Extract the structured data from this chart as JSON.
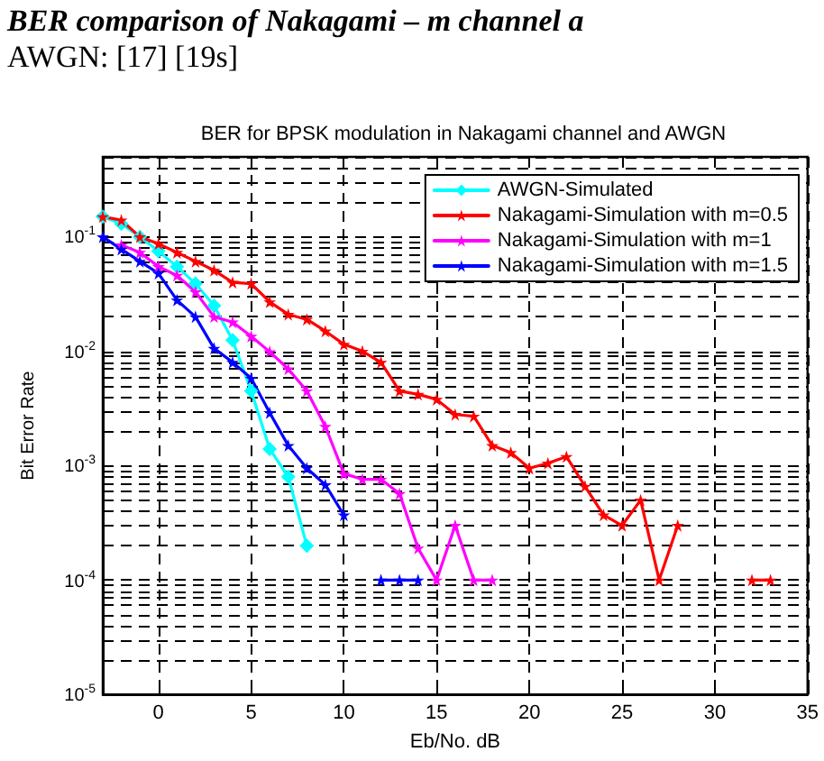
{
  "chart_data": {
    "type": "line",
    "title": "BER for BPSK modulation in Nakagami channel and AWGN",
    "xlabel": "Eb/No. dB",
    "ylabel": "Bit Error Rate",
    "annotations": [
      "BER comparison of Nakagami – m channel a",
      "AWGN: [17] [19s]"
    ],
    "log": "y",
    "grid": true,
    "legend": "top right",
    "line_style": "solid",
    "xlim": [
      -3,
      35
    ],
    "xticks": [
      0,
      5,
      10,
      15,
      20,
      25,
      30,
      35
    ],
    "ylim": [
      1e-05,
      0.5
    ],
    "yticks": [
      {
        "value": 1e-05,
        "label": "10$^{-5}$"
      },
      {
        "value": 2e-05,
        "label": null
      },
      {
        "value": 3e-05,
        "label": null
      },
      {
        "value": 4e-05,
        "label": null
      },
      {
        "value": 5e-05,
        "label": null
      },
      {
        "value": 6e-05,
        "label": null
      },
      {
        "value": 7e-05,
        "label": null
      },
      {
        "value": 8e-05,
        "label": null
      },
      {
        "value": 9e-05,
        "label": null
      },
      {
        "value": 0.0001,
        "label": "10$^{-4}$"
      },
      {
        "value": 0.0002,
        "label": null
      },
      {
        "value": 0.0003,
        "label": null
      },
      {
        "value": 0.0004,
        "label": null
      },
      {
        "value": 0.0005,
        "label": null
      },
      {
        "value": 0.0006,
        "label": null
      },
      {
        "value": 0.0007,
        "label": null
      },
      {
        "value": 0.0008,
        "label": null
      },
      {
        "value": 0.0009,
        "label": null
      },
      {
        "value": 0.001,
        "label": "10$^{-3}$"
      },
      {
        "value": 0.002,
        "label": null
      },
      {
        "value": 0.003,
        "label": null
      },
      {
        "value": 0.004,
        "label": null
      },
      {
        "value": 0.005,
        "label": null
      },
      {
        "value": 0.006,
        "label": null
      },
      {
        "value": 0.007,
        "label": null
      },
      {
        "value": 0.008,
        "label": null
      },
      {
        "value": 0.009,
        "label": null
      },
      {
        "value": 0.01,
        "label": "10$^{-2}$"
      },
      {
        "value": 0.02,
        "label": null
      },
      {
        "value": 0.03,
        "label": null
      },
      {
        "value": 0.04,
        "label": null
      },
      {
        "value": 0.05,
        "label": null
      },
      {
        "value": 0.06,
        "label": null
      },
      {
        "value": 0.07,
        "label": null
      },
      {
        "value": 0.08,
        "label": null
      },
      {
        "value": 0.09,
        "label": null
      },
      {
        "value": 0.1,
        "label": "10$^{-1}$"
      },
      {
        "value": 0.2,
        "label": null
      },
      {
        "value": 0.3,
        "label": null
      },
      {
        "value": 0.4,
        "label": null
      },
      {
        "value": 0.5,
        "label": null
      }
    ],
    "series": [
      {
        "name": "AWGN-Simulated",
        "color": "#00ffff",
        "marker": "diamond",
        "x": [
          -3,
          -2,
          -1,
          0,
          1,
          2,
          3,
          4,
          5,
          6,
          7,
          8
        ],
        "values": [
          0.15,
          0.13,
          0.1,
          0.075,
          0.055,
          0.039,
          0.025,
          0.0125,
          0.0045,
          0.0014,
          0.0008,
          0.0002
        ]
      },
      {
        "name": "Nakagami-Simulation with m=0.5",
        "color": "#ff0000",
        "marker": "star",
        "x": [
          -3,
          -2,
          -1,
          0,
          1,
          2,
          3,
          4,
          5,
          6,
          7,
          8,
          9,
          10,
          11,
          12,
          13,
          14,
          15,
          16,
          17,
          18,
          19,
          20,
          21,
          22,
          23,
          24,
          25,
          26,
          27,
          28,
          29,
          30,
          31,
          32,
          33
        ],
        "values": [
          0.15,
          0.14,
          0.1,
          0.087,
          0.073,
          0.061,
          0.051,
          0.04,
          0.039,
          0.027,
          0.021,
          0.019,
          0.015,
          0.0115,
          0.01,
          0.008,
          0.0045,
          0.0042,
          0.0038,
          0.0028,
          0.0027,
          0.0015,
          0.0013,
          0.00095,
          0.00105,
          0.0012,
          0.00066,
          0.00037,
          0.0003,
          0.0005,
          0.0001,
          0.0003,
          null,
          null,
          null,
          0.0001,
          0.0001
        ]
      },
      {
        "name": "Nakagami-Simulation with m=1",
        "color": "#ff00ff",
        "marker": "star",
        "x": [
          -2,
          -1,
          0,
          1,
          2,
          3,
          4,
          5,
          6,
          7,
          8,
          9,
          10,
          11,
          12,
          13,
          14,
          15,
          16,
          17,
          18
        ],
        "values": [
          0.085,
          0.073,
          0.055,
          0.046,
          0.033,
          0.02,
          0.018,
          0.0135,
          0.0099,
          0.007,
          0.0045,
          0.0022,
          0.00085,
          0.00076,
          0.00076,
          0.00057,
          0.00019,
          0.0001,
          0.0003,
          0.0001,
          0.0001
        ]
      },
      {
        "name": "Nakagami-Simulation with m=1.5",
        "color": "#0000ff",
        "marker": "star",
        "x": [
          -3,
          -2,
          -1,
          0,
          1,
          2,
          3,
          4,
          5,
          6,
          7,
          8,
          9,
          10,
          11,
          12,
          13,
          14
        ],
        "values": [
          0.1,
          0.078,
          0.061,
          0.048,
          0.028,
          0.02,
          0.0106,
          0.008,
          0.0058,
          0.0029,
          0.0015,
          0.00095,
          0.00068,
          0.00037,
          null,
          0.0001,
          0.0001,
          0.0001
        ]
      }
    ]
  }
}
